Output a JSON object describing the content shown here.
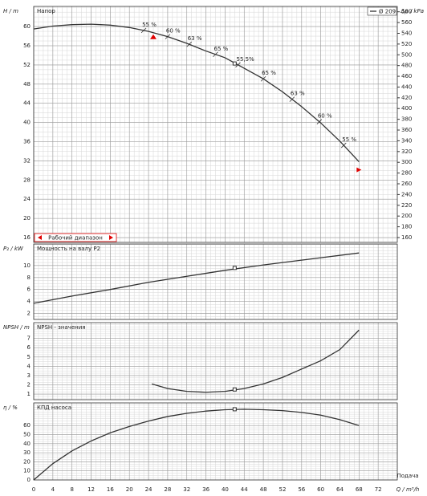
{
  "chart_data": [
    {
      "type": "line",
      "title": "Напор",
      "y_label": "H / m",
      "y2_label": "Δp / kPa",
      "grid": true,
      "xlim": [
        0,
        76
      ],
      "xticks": [
        0,
        4,
        8,
        12,
        16,
        20,
        24,
        28,
        32,
        36,
        40,
        44,
        48,
        52,
        56,
        60,
        64,
        68,
        72
      ],
      "ylim": [
        15,
        64.2
      ],
      "yticks": [
        16,
        20,
        24,
        28,
        32,
        36,
        40,
        44,
        48,
        52,
        56,
        60
      ],
      "y2lim": [
        151,
        590
      ],
      "y2ticks": [
        160,
        180,
        200,
        220,
        240,
        260,
        280,
        300,
        320,
        340,
        360,
        380,
        400,
        420,
        440,
        460,
        480,
        500,
        520,
        540,
        560,
        580
      ],
      "x": [
        0,
        4,
        8,
        12,
        16,
        20,
        24,
        28,
        32,
        36,
        40,
        44,
        48,
        52,
        56,
        60,
        64,
        68
      ],
      "series": [
        {
          "name": "Ø 209",
          "color": "#333333",
          "values": [
            59.5,
            60.1,
            60.4,
            60.5,
            60.3,
            59.8,
            59.0,
            57.9,
            56.5,
            54.9,
            53.5,
            51.3,
            49.1,
            46.4,
            43.3,
            39.9,
            36.1,
            31.8
          ]
        }
      ],
      "duty_point": {
        "x": 42,
        "y": 52.3
      },
      "efficiency_marks": [
        {
          "x": 23,
          "label": "55 %"
        },
        {
          "x": 28,
          "label": "60 %"
        },
        {
          "x": 32.5,
          "label": "63 %"
        },
        {
          "x": 38,
          "label": "65 %"
        },
        {
          "x": 42.7,
          "label": "55,5%"
        },
        {
          "x": 48,
          "label": "65 %"
        },
        {
          "x": 54,
          "label": "63 %"
        },
        {
          "x": 59.7,
          "label": "60 %"
        },
        {
          "x": 64.8,
          "label": "55 %"
        }
      ],
      "operating_range": {
        "label": "Рабочий диапазон",
        "x": [
          25,
          68
        ],
        "color": "#e00000"
      }
    },
    {
      "type": "line",
      "title": "Мощность на валу P2",
      "y_label": "P₂ / kW",
      "grid": true,
      "xlim": [
        0,
        76
      ],
      "xticks": [
        0,
        4,
        8,
        12,
        16,
        20,
        24,
        28,
        32,
        36,
        40,
        44,
        48,
        52,
        56,
        60,
        64,
        68,
        72
      ],
      "ylim": [
        1,
        13.6
      ],
      "yticks": [
        2,
        4,
        6,
        8,
        10
      ],
      "x": [
        0,
        8,
        16,
        24,
        32,
        40,
        48,
        56,
        60,
        68
      ],
      "values": [
        3.7,
        4.9,
        6.0,
        7.2,
        8.2,
        9.2,
        10.1,
        10.9,
        11.3,
        12.1
      ],
      "color": "#333333",
      "duty_point": {
        "x": 42,
        "y": 9.6
      }
    },
    {
      "type": "line",
      "title": "NPSH - значения",
      "y_label": "NPSH / m",
      "grid": true,
      "xlim": [
        0,
        76
      ],
      "xticks": [
        0,
        4,
        8,
        12,
        16,
        20,
        24,
        28,
        32,
        36,
        40,
        44,
        48,
        52,
        56,
        60,
        64,
        68,
        72
      ],
      "ylim": [
        0.4,
        8.7
      ],
      "yticks": [
        1,
        2,
        3,
        4,
        5,
        6,
        7
      ],
      "x": [
        24.7,
        28,
        32,
        36,
        40,
        44,
        48,
        52,
        56,
        60,
        64,
        68
      ],
      "values": [
        2.1,
        1.6,
        1.3,
        1.2,
        1.3,
        1.6,
        2.1,
        2.8,
        3.7,
        4.6,
        5.8,
        7.9
      ],
      "color": "#333333",
      "duty_point": {
        "x": 42,
        "y": 1.5
      }
    },
    {
      "type": "line",
      "title": "КПД насоса",
      "y_label": "η / %",
      "x_label": "Q / m³/h",
      "x_sublabel": "Подача",
      "grid": true,
      "xlim": [
        0,
        76
      ],
      "xticks": [
        0,
        4,
        8,
        12,
        16,
        20,
        24,
        28,
        32,
        36,
        40,
        44,
        48,
        52,
        56,
        60,
        64,
        68,
        72
      ],
      "ylim": [
        0,
        85
      ],
      "yticks": [
        0,
        10,
        20,
        30,
        40,
        50,
        60
      ],
      "x": [
        0,
        4,
        8,
        12,
        16,
        20,
        24,
        28,
        32,
        36,
        40,
        44,
        48,
        52,
        56,
        60,
        64,
        68
      ],
      "values": [
        0,
        18,
        32,
        43,
        52,
        59,
        65,
        70,
        73.5,
        76,
        77.5,
        78,
        77.5,
        76.5,
        74.5,
        71.5,
        66.5,
        60
      ],
      "color": "#333333",
      "duty_point": {
        "x": 42,
        "y": 78
      }
    }
  ]
}
